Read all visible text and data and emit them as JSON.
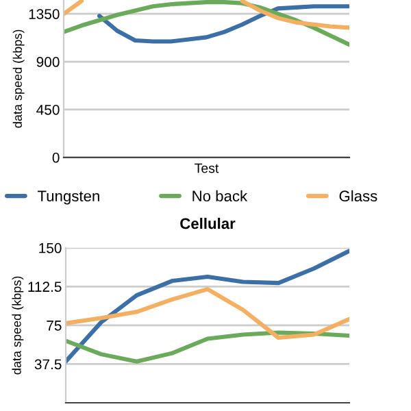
{
  "chart_data": [
    {
      "type": "line",
      "xlabel": "Test",
      "ylabel": "data speed (kbps)",
      "categories": [
        null,
        null,
        null,
        null,
        null,
        null,
        null,
        null,
        null,
        null,
        null,
        null,
        null,
        null,
        null,
        null,
        null
      ],
      "series": [
        {
          "name": "Tungsten",
          "color": "#3b6fa6",
          "values": [
            null,
            null,
            1330,
            1190,
            1100,
            1090,
            1090,
            1110,
            1130,
            1180,
            1250,
            1330,
            1400,
            1410,
            1420,
            1420,
            1420
          ]
        },
        {
          "name": "No back",
          "color": "#6aaa5a",
          "values": [
            1180,
            1240,
            1290,
            1340,
            1380,
            1420,
            1440,
            1450,
            1460,
            1460,
            1450,
            1410,
            1350,
            1290,
            1220,
            1140,
            1060
          ]
        },
        {
          "name": "Glass",
          "color": "#f3b062",
          "values": [
            1350,
            1470,
            null,
            null,
            null,
            null,
            null,
            null,
            null,
            null,
            1470,
            1380,
            1310,
            1270,
            1250,
            1230,
            1220
          ]
        }
      ],
      "ylim": [
        0,
        1480
      ],
      "yticks": [
        0,
        450,
        900,
        1350
      ],
      "grid": "y",
      "legend": "bottom",
      "tick_labels": "y"
    },
    {
      "type": "line",
      "title": "Cellular",
      "ylabel": "data speed (kbps)",
      "categories": [
        null,
        null,
        null,
        null,
        null,
        null,
        null,
        null,
        null
      ],
      "series": [
        {
          "color": "#3b6fa6",
          "values": [
            40,
            78,
            104,
            118,
            122,
            117,
            116,
            130,
            147
          ]
        },
        {
          "color": "#6aaa5a",
          "values": [
            60,
            47,
            40,
            48,
            62,
            66,
            68,
            67,
            65
          ]
        },
        {
          "color": "#f3b062",
          "values": [
            77,
            82,
            88,
            100,
            110,
            90,
            63,
            66,
            81
          ]
        }
      ],
      "ylim": [
        0,
        150
      ],
      "yticks": [
        37.5,
        75,
        112.5,
        150
      ],
      "grid": "y",
      "tick_labels": "y"
    }
  ]
}
